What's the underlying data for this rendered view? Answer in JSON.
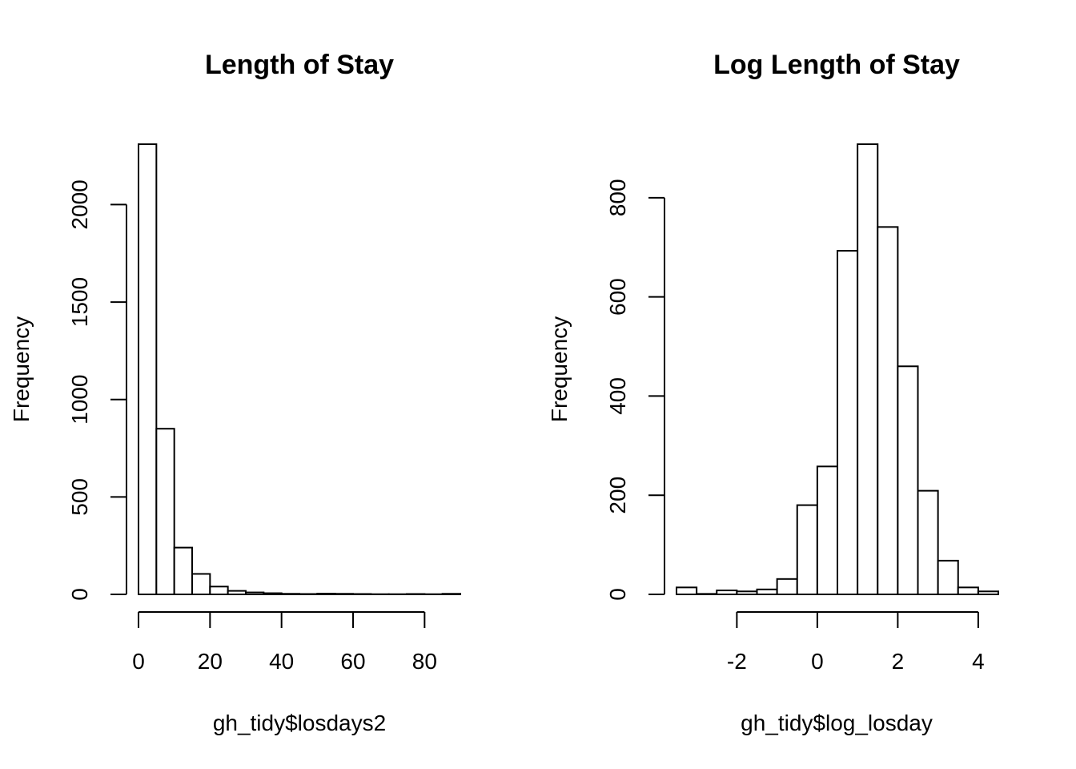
{
  "chart_data": [
    {
      "type": "bar",
      "title": "Length of Stay",
      "xlabel": "gh_tidy$losdays2",
      "ylabel": "Frequency",
      "bin_edges": [
        0,
        5,
        10,
        15,
        20,
        25,
        30,
        35,
        40,
        45,
        50,
        55,
        60,
        65,
        70,
        75,
        80,
        85,
        90
      ],
      "values": [
        2310,
        850,
        240,
        105,
        40,
        18,
        10,
        6,
        3,
        2,
        4,
        3,
        2,
        1,
        1,
        2,
        1,
        3
      ],
      "xlim": [
        0,
        90
      ],
      "ylim": [
        0,
        2310
      ],
      "x_ticks": [
        0,
        20,
        40,
        60,
        80
      ],
      "y_ticks": [
        0,
        500,
        1000,
        1500,
        2000
      ]
    },
    {
      "type": "bar",
      "title": "Log Length of Stay",
      "xlabel": "gh_tidy$log_losday",
      "ylabel": "Frequency",
      "bin_edges": [
        -3.5,
        -3.0,
        -2.5,
        -2.0,
        -1.5,
        -1.0,
        -0.5,
        0.0,
        0.5,
        1.0,
        1.5,
        2.0,
        2.5,
        3.0,
        3.5,
        4.0,
        4.5
      ],
      "values": [
        14,
        1,
        8,
        6,
        10,
        31,
        180,
        258,
        693,
        908,
        741,
        460,
        209,
        68,
        14,
        6
      ],
      "xlim": [
        -3.5,
        4.5
      ],
      "ylim": [
        0,
        908
      ],
      "x_ticks": [
        -2,
        0,
        2,
        4
      ],
      "y_ticks": [
        0,
        200,
        400,
        600,
        800
      ]
    }
  ]
}
